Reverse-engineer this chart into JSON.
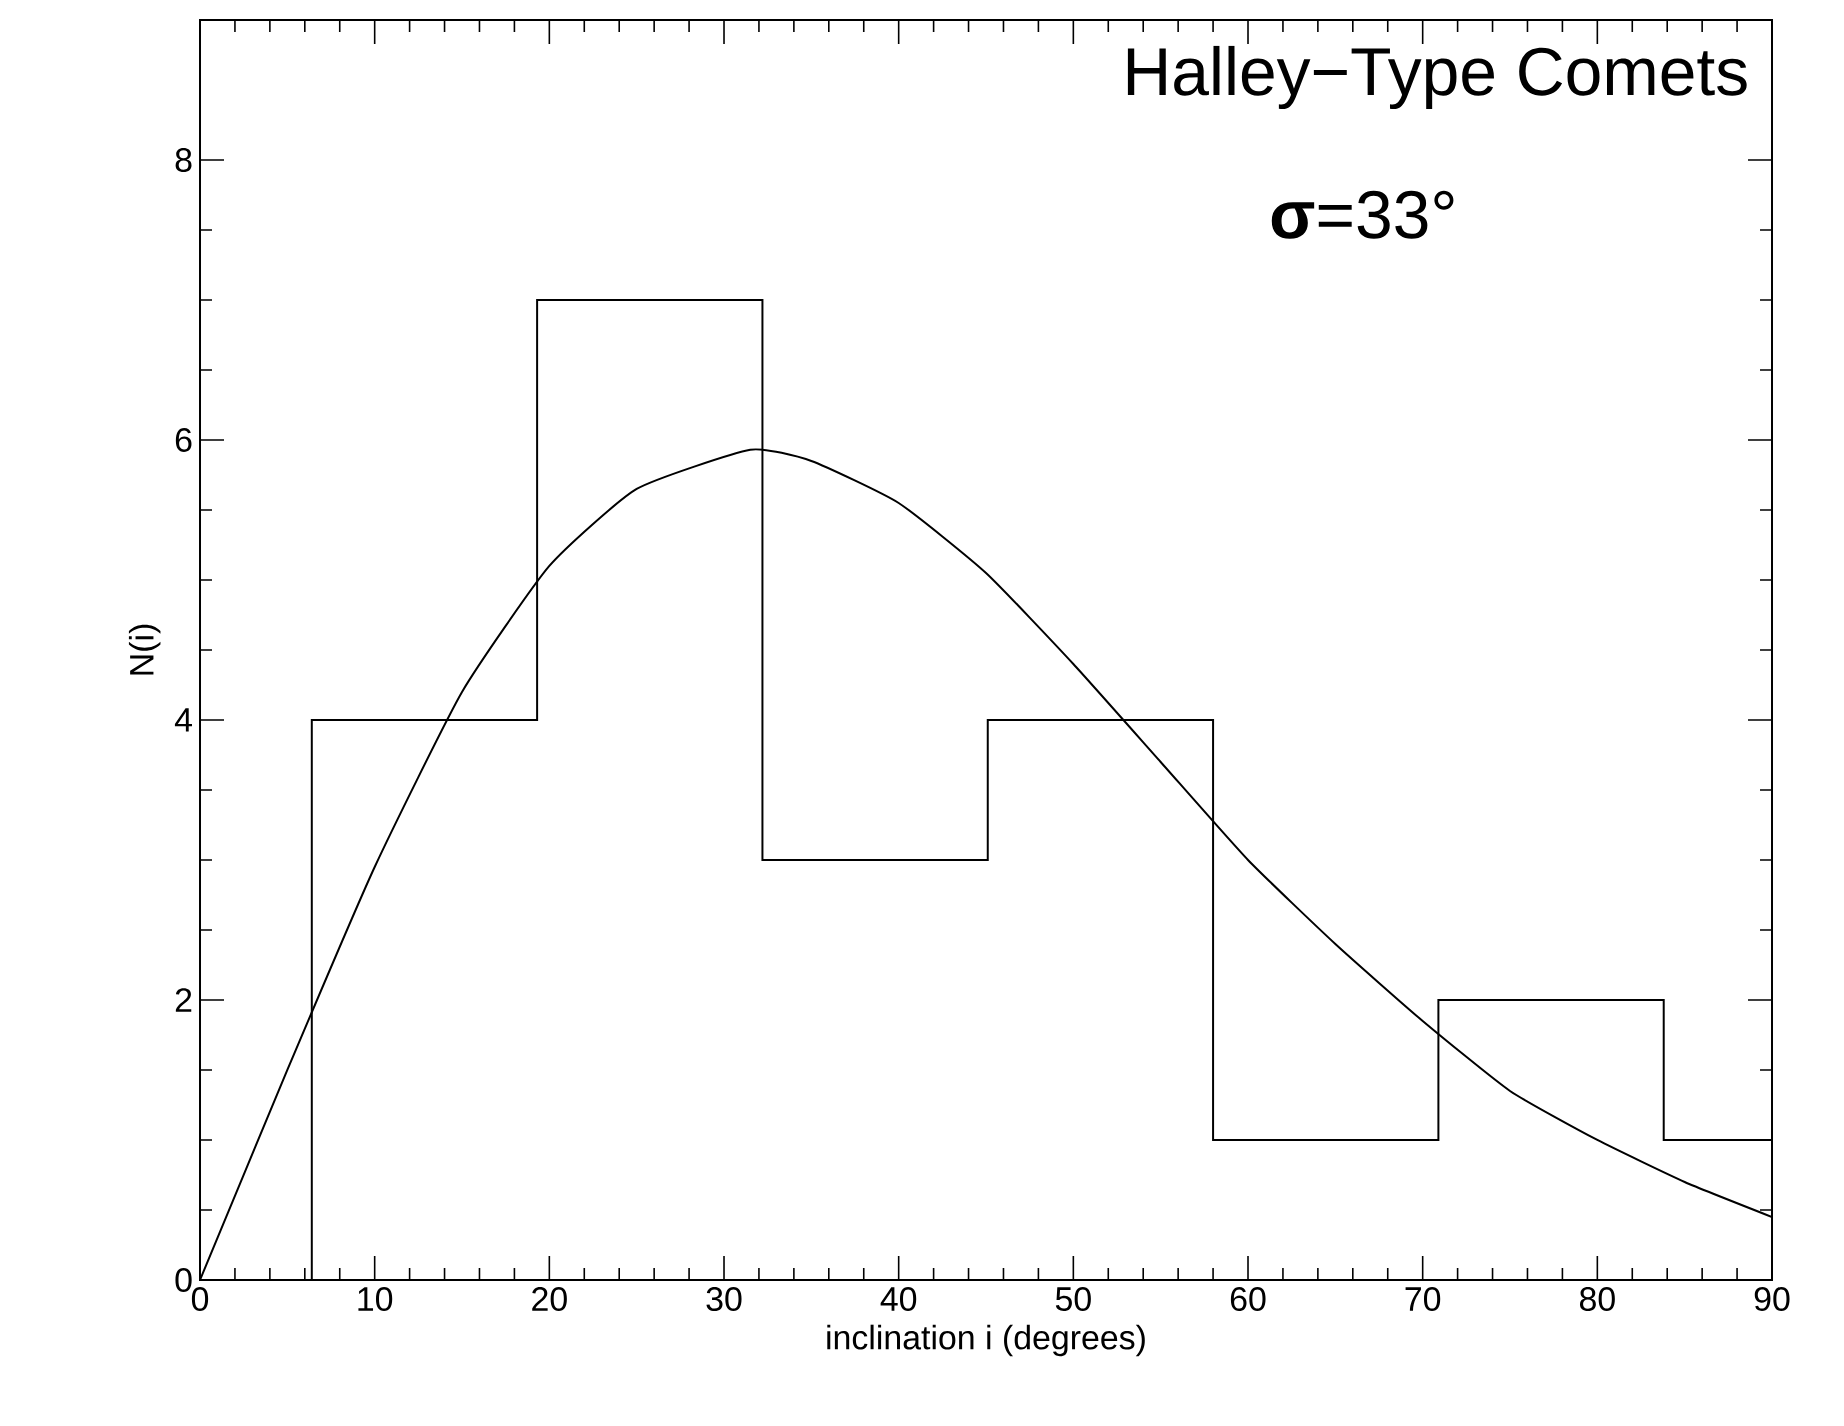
{
  "chart_data": {
    "type": "histogram",
    "title": "Halley−Type Comets",
    "annotations": [
      "**σ**=33°"
    ],
    "xlabel": "inclination i     (degrees)",
    "ylabel": "N(i)",
    "bins": [
      6.4,
      19.3,
      32.2,
      45.1,
      58.0,
      70.9,
      83.8,
      90
    ],
    "values": [
      4,
      7,
      3,
      4,
      1,
      2,
      1
    ],
    "color": "#000000",
    "series": [
      {
        "type": "line",
        "color": "#000000",
        "x": [
          0,
          5,
          10,
          15,
          20,
          25,
          31.5,
          35,
          40,
          45,
          50,
          55,
          60,
          65,
          70,
          75,
          80,
          85,
          90
        ],
        "values": [
          0,
          1.5,
          2.95,
          4.2,
          5.1,
          5.65,
          5.93,
          5.85,
          5.55,
          5.05,
          4.4,
          3.7,
          3.0,
          2.4,
          1.85,
          1.35,
          1.0,
          0.7,
          0.45
        ]
      }
    ],
    "xlim": [
      0,
      90
    ],
    "ylim": [
      0,
      9
    ],
    "xticks": [
      0,
      10,
      20,
      30,
      40,
      50,
      60,
      70,
      80,
      90
    ],
    "yticks": [
      0,
      2,
      4,
      6,
      8
    ],
    "grid": false
  }
}
